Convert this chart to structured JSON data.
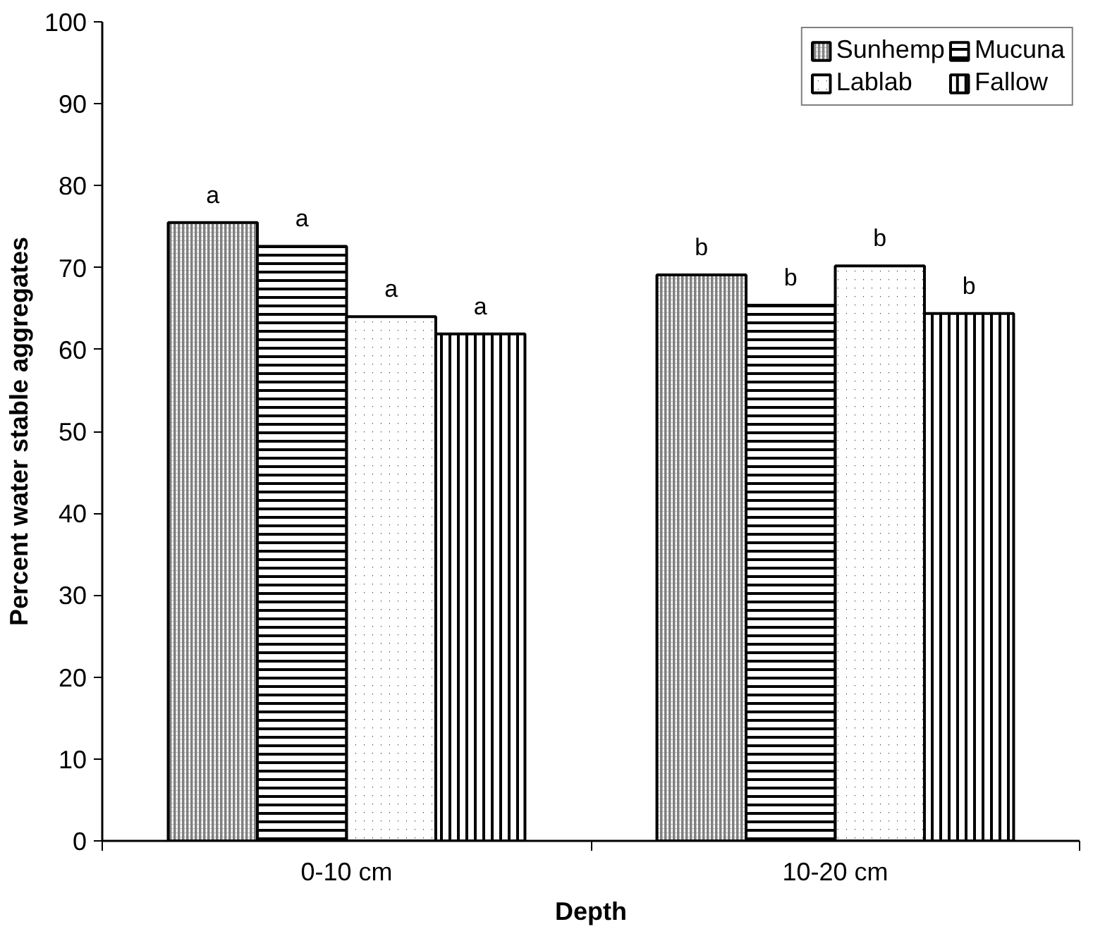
{
  "chart_data": {
    "type": "bar",
    "xlabel": "Depth",
    "ylabel": "Percent water stable aggregates",
    "categories": [
      "0-10 cm",
      "10-20 cm"
    ],
    "series": [
      {
        "name": "Sunhemp",
        "color": "#808080",
        "values": [
          75.5,
          69.1
        ]
      },
      {
        "name": "Mucuna",
        "color": "#000000",
        "values": [
          72.6,
          65.4
        ]
      },
      {
        "name": "Lablab",
        "color": "#000000",
        "values": [
          64.0,
          70.2
        ]
      },
      {
        "name": "Fallow",
        "color": "#000000",
        "values": [
          61.9,
          64.4
        ]
      }
    ],
    "ylim": [
      0,
      100
    ],
    "yticks": [
      0,
      10,
      20,
      30,
      40,
      50,
      60,
      70,
      80,
      90,
      100
    ],
    "grid": false,
    "legend": "top right",
    "annotations": [
      "a",
      "a",
      "a",
      "a",
      "b",
      "b",
      "b",
      "b"
    ]
  }
}
